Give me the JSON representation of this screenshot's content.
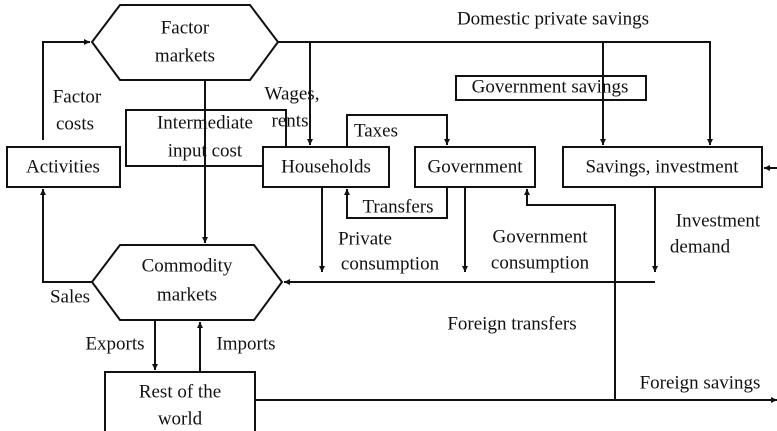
{
  "nodes": [
    {
      "lines": [
        "Factor",
        "markets"
      ]
    },
    {
      "lines": [
        "Activities"
      ]
    },
    {
      "lines": [
        "Households"
      ]
    },
    {
      "lines": [
        "Government"
      ]
    },
    {
      "lines": [
        "Savings, investment"
      ]
    },
    {
      "lines": [
        "Commodity",
        "markets"
      ]
    },
    {
      "lines": [
        "Rest of the",
        "world"
      ]
    }
  ],
  "edges": [
    {
      "lines": [
        "Factor",
        "costs"
      ]
    },
    {
      "lines": [
        "Domestic private savings"
      ]
    },
    {
      "lines": [
        "Wages,",
        "rents"
      ]
    },
    {
      "lines": [
        "Government savings"
      ]
    },
    {
      "lines": [
        "Intermediate",
        "input cost"
      ]
    },
    {
      "lines": [
        "Taxes"
      ]
    },
    {
      "lines": [
        "Transfers"
      ]
    },
    {
      "lines": [
        "Private",
        "consumption"
      ]
    },
    {
      "lines": [
        "Government",
        "consumption"
      ]
    },
    {
      "lines": [
        "Investment",
        "demand"
      ]
    },
    {
      "lines": [
        "Sales"
      ]
    },
    {
      "lines": [
        "Foreign transfers"
      ]
    },
    {
      "lines": [
        "Exports"
      ]
    },
    {
      "lines": [
        "Imports"
      ]
    },
    {
      "lines": [
        "Foreign savings"
      ]
    }
  ]
}
